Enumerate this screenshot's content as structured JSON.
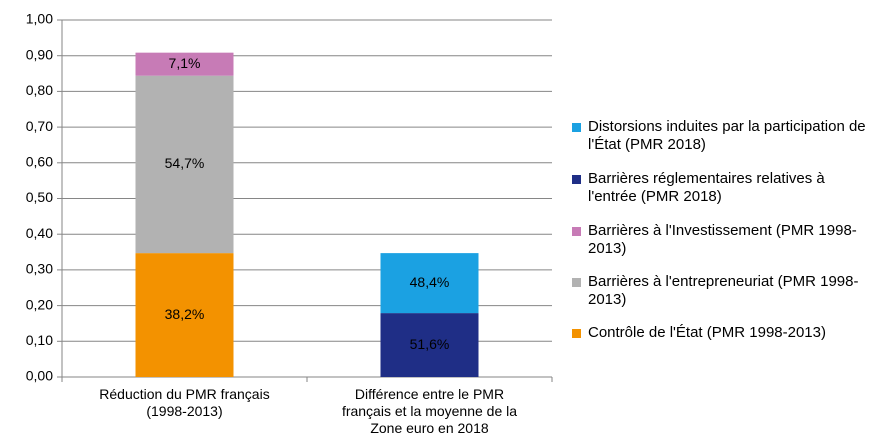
{
  "chart_data": {
    "type": "stacked-bar",
    "categories": [
      "Réduction du PMR français (1998-2013)",
      "Différence entre le PMR français et la moyenne de la Zone euro en 2018"
    ],
    "series": [
      {
        "name": "Contrôle de l'État (PMR 1998-2013)",
        "color": "#f39200",
        "values": [
          0.347,
          null
        ],
        "value_labels": [
          "38,2%",
          null
        ]
      },
      {
        "name": "Barrières à l'entrepreneuriat (PMR 1998-2013)",
        "color": "#b2b2b2",
        "values": [
          0.497,
          null
        ],
        "value_labels": [
          "54,7%",
          null
        ]
      },
      {
        "name": "Barrières à l'Investissement (PMR 1998-2013)",
        "color": "#c77bb6",
        "values": [
          0.0645,
          null
        ],
        "value_labels": [
          "7,1%",
          null
        ]
      },
      {
        "name": "Barrières réglementaires relatives à l'entrée (PMR 2018)",
        "color": "#1f2e86",
        "values": [
          null,
          0.179
        ],
        "value_labels": [
          null,
          "51,6%"
        ]
      },
      {
        "name": "Distorsions induites par la participation de l'État (PMR 2018)",
        "color": "#1ba1e2",
        "values": [
          null,
          0.168
        ],
        "value_labels": [
          null,
          "48,4%"
        ]
      }
    ],
    "ylim": [
      0,
      1
    ],
    "yticks": [
      {
        "value": 0,
        "label": "0,00"
      },
      {
        "value": 0.1,
        "label": "0,10"
      },
      {
        "value": 0.2,
        "label": "0,20"
      },
      {
        "value": 0.3,
        "label": "0,30"
      },
      {
        "value": 0.4,
        "label": "0,40"
      },
      {
        "value": 0.5,
        "label": "0,50"
      },
      {
        "value": 0.6,
        "label": "0,60"
      },
      {
        "value": 0.7,
        "label": "0,70"
      },
      {
        "value": 0.8,
        "label": "0,80"
      },
      {
        "value": 0.9,
        "label": "0,90"
      },
      {
        "value": 1,
        "label": "1,00"
      }
    ],
    "grid": true,
    "legend": "right"
  }
}
